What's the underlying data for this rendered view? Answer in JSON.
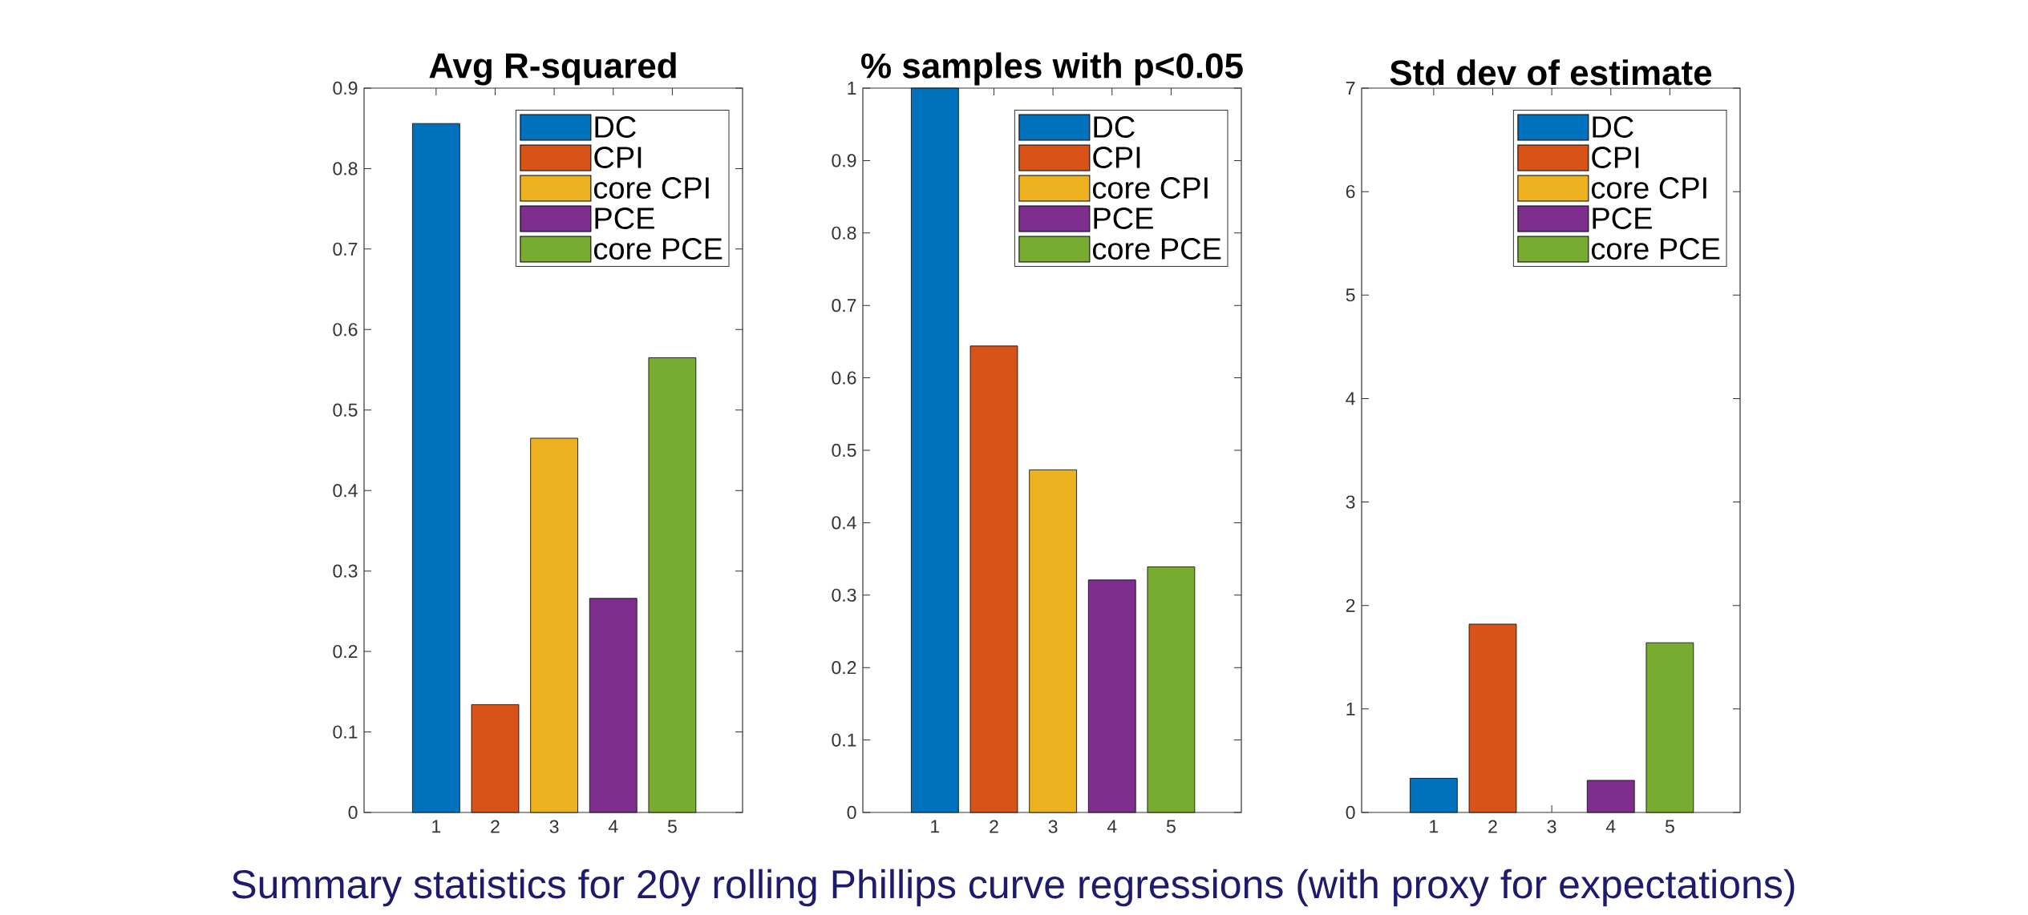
{
  "chart_data": [
    {
      "type": "bar",
      "title": "Avg R-squared",
      "categories": [
        "1",
        "2",
        "3",
        "4",
        "5"
      ],
      "ylim": [
        0,
        0.9
      ],
      "yticks": [
        0,
        0.1,
        0.2,
        0.3,
        0.4,
        0.5,
        0.6,
        0.7,
        0.8,
        0.9
      ],
      "legend": "top right",
      "series": [
        {
          "name": "DC",
          "color": "#0072bd",
          "values": [
            0.856,
            null,
            null,
            null,
            null
          ]
        },
        {
          "name": "CPI",
          "color": "#d95319",
          "values": [
            null,
            0.134,
            null,
            null,
            null
          ]
        },
        {
          "name": "core CPI",
          "color": "#edb120",
          "values": [
            null,
            null,
            0.465,
            null,
            null
          ]
        },
        {
          "name": "PCE",
          "color": "#7e2f8e",
          "values": [
            null,
            null,
            null,
            0.266,
            null
          ]
        },
        {
          "name": "core PCE",
          "color": "#77ac30",
          "values": [
            null,
            null,
            null,
            null,
            0.565
          ]
        }
      ],
      "annotations": [
        "Summary statistics for 20y rolling Phillips curve regressions (with proxy for expectations)"
      ]
    },
    {
      "type": "bar",
      "title": "% samples with p<0.05",
      "categories": [
        "1",
        "2",
        "3",
        "4",
        "5"
      ],
      "ylim": [
        0,
        1
      ],
      "yticks": [
        0,
        0.1,
        0.2,
        0.3,
        0.4,
        0.5,
        0.6,
        0.7,
        0.8,
        0.9,
        1
      ],
      "legend": "top right",
      "series": [
        {
          "name": "DC",
          "color": "#0072bd",
          "values": [
            1.0,
            null,
            null,
            null,
            null
          ]
        },
        {
          "name": "CPI",
          "color": "#d95319",
          "values": [
            null,
            0.644,
            null,
            null,
            null
          ]
        },
        {
          "name": "core CPI",
          "color": "#edb120",
          "values": [
            null,
            null,
            0.473,
            null,
            null
          ]
        },
        {
          "name": "PCE",
          "color": "#7e2f8e",
          "values": [
            null,
            null,
            null,
            0.321,
            null
          ]
        },
        {
          "name": "core PCE",
          "color": "#77ac30",
          "values": [
            null,
            null,
            null,
            null,
            0.339
          ]
        }
      ]
    },
    {
      "type": "bar",
      "title": "Std dev of estimate",
      "categories": [
        "1",
        "2",
        "3",
        "4",
        "5"
      ],
      "ylim": [
        0,
        7
      ],
      "yticks": [
        0,
        1,
        2,
        3,
        4,
        5,
        6,
        7
      ],
      "legend": "top right",
      "series": [
        {
          "name": "DC",
          "color": "#0072bd",
          "values": [
            0.33,
            null,
            null,
            null,
            null
          ]
        },
        {
          "name": "CPI",
          "color": "#d95319",
          "values": [
            null,
            1.82,
            null,
            null,
            null
          ]
        },
        {
          "name": "core CPI",
          "color": "#edb120",
          "values": [
            null,
            null,
            null,
            null,
            null
          ]
        },
        {
          "name": "PCE",
          "color": "#7e2f8e",
          "values": [
            null,
            null,
            null,
            0.31,
            null
          ]
        },
        {
          "name": "core PCE",
          "color": "#77ac30",
          "values": [
            null,
            null,
            null,
            null,
            1.64
          ]
        }
      ]
    }
  ]
}
